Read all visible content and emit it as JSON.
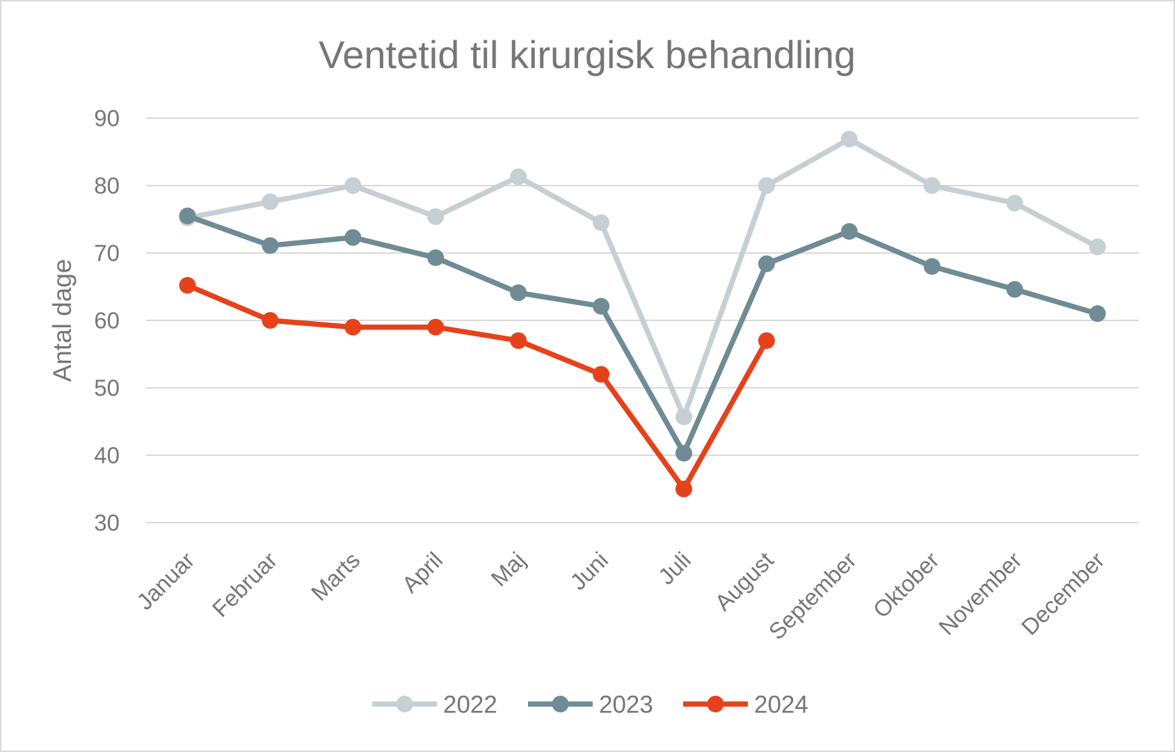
{
  "chart_data": {
    "type": "line",
    "title": "Ventetid til kirurgisk behandling",
    "xlabel": "",
    "ylabel": "Antal dage",
    "categories": [
      "Januar",
      "Februar",
      "Marts",
      "April",
      "Maj",
      "Juni",
      "Juli",
      "August",
      "September",
      "Oktober",
      "November",
      "December"
    ],
    "ylim": [
      30,
      90
    ],
    "yticks": [
      30,
      40,
      50,
      60,
      70,
      80,
      90
    ],
    "grid": "horizontal",
    "legend": "bottom",
    "series": [
      {
        "name": "2022",
        "color": "#c6cfd3",
        "values": [
          75.2,
          77.6,
          80,
          75.4,
          81.3,
          74.5,
          45.7,
          80,
          86.9,
          80,
          77.4,
          70.9
        ]
      },
      {
        "name": "2023",
        "color": "#6f8b96",
        "values": [
          75.5,
          71.1,
          72.3,
          69.3,
          64.1,
          62.1,
          40.3,
          68.4,
          73.2,
          68,
          64.6,
          61
        ]
      },
      {
        "name": "2024",
        "color": "#e5421c",
        "values": [
          65.2,
          60,
          59,
          59,
          57,
          52,
          35,
          57,
          null,
          null,
          null,
          null
        ]
      }
    ]
  }
}
